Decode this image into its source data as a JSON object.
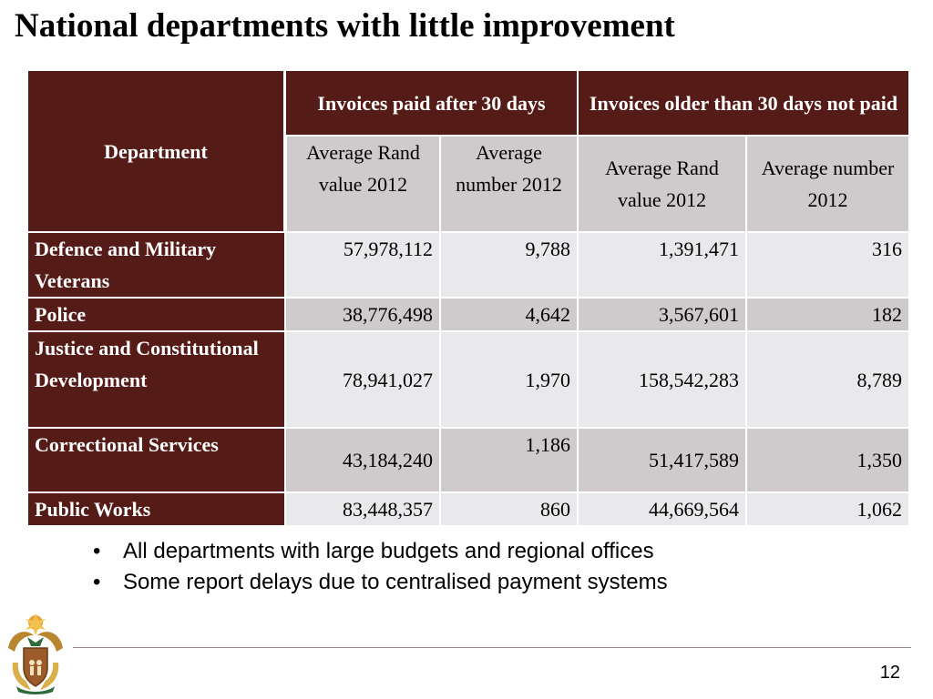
{
  "slide": {
    "title": "National departments with little improvement",
    "page_number": "12"
  },
  "table": {
    "department_header": "Department",
    "group_headers": [
      "Invoices paid after 30 days",
      "Invoices older than 30 days not paid"
    ],
    "sub_headers": [
      "Average Rand value 2012",
      "Average number 2012",
      "Average Rand value 2012",
      "Average number 2012"
    ],
    "rows": [
      {
        "department": "Defence and Military Veterans",
        "paid_avg_rand": "57,978,112",
        "paid_avg_number": "9,788",
        "unpaid_avg_rand": "1,391,471",
        "unpaid_avg_number": "316"
      },
      {
        "department": "Police",
        "paid_avg_rand": "38,776,498",
        "paid_avg_number": "4,642",
        "unpaid_avg_rand": "3,567,601",
        "unpaid_avg_number": "182"
      },
      {
        "department": "Justice and Constitutional Development",
        "paid_avg_rand": "78,941,027",
        "paid_avg_number": "1,970",
        "unpaid_avg_rand": "158,542,283",
        "unpaid_avg_number": "8,789"
      },
      {
        "department": "Correctional Services",
        "paid_avg_rand": "43,184,240",
        "paid_avg_number": "1,186",
        "unpaid_avg_rand": "51,417,589",
        "unpaid_avg_number": "1,350"
      },
      {
        "department": "Public Works",
        "paid_avg_rand": "83,448,357",
        "paid_avg_number": "860",
        "unpaid_avg_rand": "44,669,564",
        "unpaid_avg_number": "1,062"
      }
    ]
  },
  "bullets": {
    "marker": "•",
    "items": [
      "All departments with large budgets and regional offices",
      "Some report delays due to centralised payment systems"
    ]
  },
  "logo": {
    "icon": "coat-of-arms-icon"
  },
  "colors": {
    "header_maroon": "#541b17",
    "subheader_grey": "#cfcacb",
    "row_light": "#e9e8ea",
    "row_dark": "#cfcacb"
  }
}
